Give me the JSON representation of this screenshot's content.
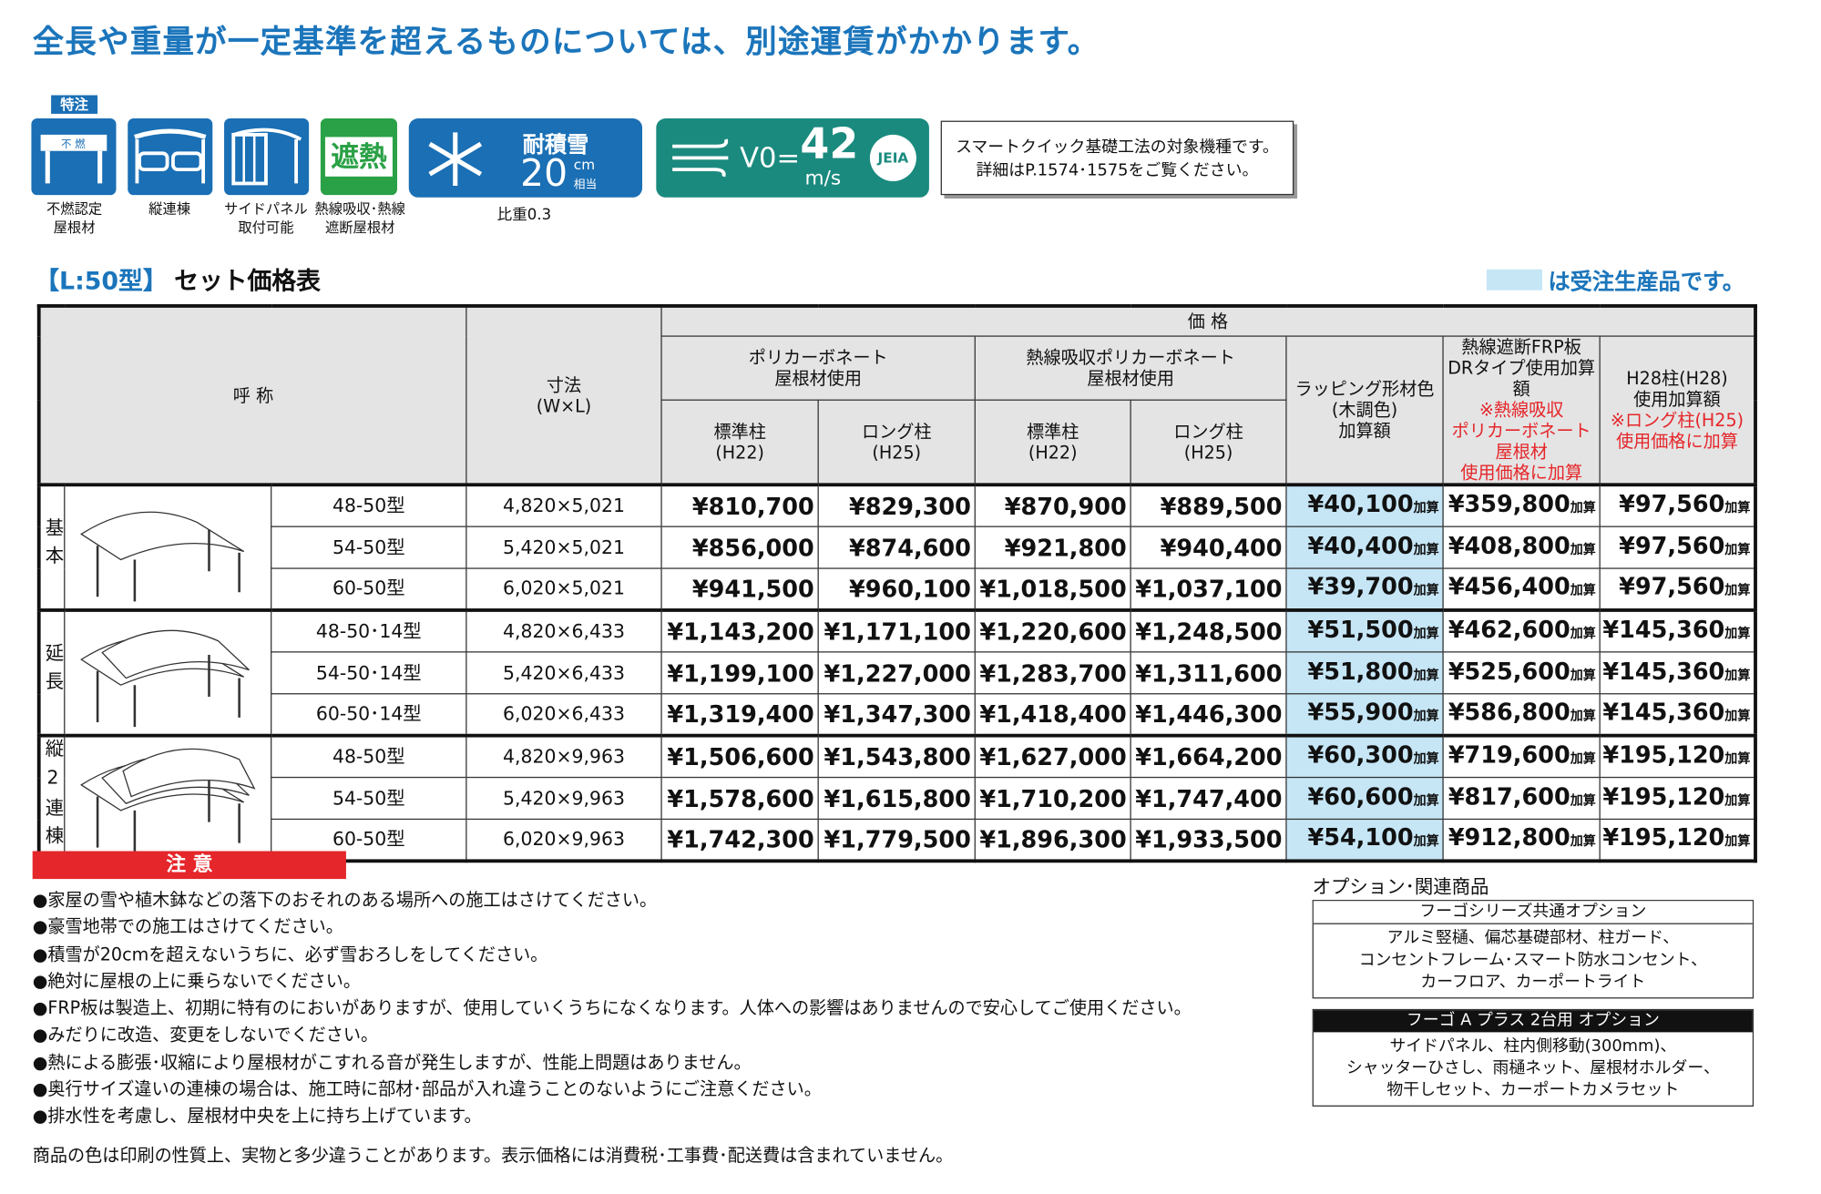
{
  "header": {
    "title": "全長や重量が一定基準を超えるものについては、別途運賃がかかります。"
  },
  "icons": {
    "special_tag": "特注",
    "items": [
      {
        "text": "不 燃",
        "label": [
          "不燃認定",
          "屋根材"
        ]
      },
      {
        "label": [
          "縦連棟"
        ]
      },
      {
        "label": [
          "サイドパネル",
          "取付可能"
        ]
      },
      {
        "text": "遮熱",
        "label": [
          "熱線吸収･熱線",
          "遮断屋根材"
        ]
      }
    ],
    "snow": {
      "title": "耐積雪",
      "value": "20",
      "unit": "cm",
      "unit_note": "相当",
      "note": "比重0.3"
    },
    "wind": {
      "prefix": "V0=",
      "value": "42",
      "unit": "m/s",
      "badge": "JEIA"
    },
    "notice": [
      "スマートクイック基礎工法の対象機種です。",
      "詳細はP.1574･1575をご覧ください。"
    ]
  },
  "section": {
    "bracket": "【L:50型】",
    "title": "セット価格表",
    "legend": "は受注生産品です。"
  },
  "table": {
    "header": {
      "name": "呼 称",
      "size": [
        "寸法",
        "(W×L)"
      ],
      "price": "価 格",
      "groups": [
        [
          "ポリカーボネート",
          "屋根材使用"
        ],
        [
          "熱線吸収ポリカーボネート",
          "屋根材使用"
        ]
      ],
      "extras": [
        {
          "lines": [
            "ラッピング形材色",
            "(木調色)",
            "加算額"
          ],
          "notes": []
        },
        {
          "lines": [
            "熱線遮断FRP板",
            "DRタイプ使用加算額"
          ],
          "notes": [
            "※熱線吸収",
            "ポリカーボネート屋根材",
            "使用価格に加算"
          ]
        },
        {
          "lines": [
            "H28柱(H28)",
            "使用加算額"
          ],
          "notes": [
            "※ロング柱(H25)",
            "使用価格に加算"
          ]
        }
      ],
      "posts": [
        [
          "標準柱",
          "(H22)"
        ],
        [
          "ロング柱",
          "(H25)"
        ],
        [
          "標準柱",
          "(H22)"
        ],
        [
          "ロング柱",
          "(H25)"
        ]
      ]
    },
    "suffix": "加算",
    "groups": [
      {
        "label": "基本",
        "rows": [
          {
            "name": "48-50型",
            "size": "4,820×5,021",
            "prices": [
              "¥810,700",
              "¥829,300",
              "¥870,900",
              "¥889,500",
              "¥40,100",
              "¥359,800",
              "¥97,560"
            ]
          },
          {
            "name": "54-50型",
            "size": "5,420×5,021",
            "prices": [
              "¥856,000",
              "¥874,600",
              "¥921,800",
              "¥940,400",
              "¥40,400",
              "¥408,800",
              "¥97,560"
            ]
          },
          {
            "name": "60-50型",
            "size": "6,020×5,021",
            "prices": [
              "¥941,500",
              "¥960,100",
              "¥1,018,500",
              "¥1,037,100",
              "¥39,700",
              "¥456,400",
              "¥97,560"
            ]
          }
        ]
      },
      {
        "label": "延長",
        "rows": [
          {
            "name": "48-50･14型",
            "size": "4,820×6,433",
            "prices": [
              "¥1,143,200",
              "¥1,171,100",
              "¥1,220,600",
              "¥1,248,500",
              "¥51,500",
              "¥462,600",
              "¥145,360"
            ]
          },
          {
            "name": "54-50･14型",
            "size": "5,420×6,433",
            "prices": [
              "¥1,199,100",
              "¥1,227,000",
              "¥1,283,700",
              "¥1,311,600",
              "¥51,800",
              "¥525,600",
              "¥145,360"
            ]
          },
          {
            "name": "60-50･14型",
            "size": "6,020×6,433",
            "prices": [
              "¥1,319,400",
              "¥1,347,300",
              "¥1,418,400",
              "¥1,446,300",
              "¥55,900",
              "¥586,800",
              "¥145,360"
            ]
          }
        ]
      },
      {
        "label": "縦2連棟",
        "rows": [
          {
            "name": "48-50型",
            "size": "4,820×9,963",
            "prices": [
              "¥1,506,600",
              "¥1,543,800",
              "¥1,627,000",
              "¥1,664,200",
              "¥60,300",
              "¥719,600",
              "¥195,120"
            ]
          },
          {
            "name": "54-50型",
            "size": "5,420×9,963",
            "prices": [
              "¥1,578,600",
              "¥1,615,800",
              "¥1,710,200",
              "¥1,747,400",
              "¥60,600",
              "¥817,600",
              "¥195,120"
            ]
          },
          {
            "name": "60-50型",
            "size": "6,020×9,963",
            "prices": [
              "¥1,742,300",
              "¥1,779,500",
              "¥1,896,300",
              "¥1,933,500",
              "¥54,100",
              "¥912,800",
              "¥195,120"
            ]
          }
        ]
      }
    ]
  },
  "caution": {
    "title": "注 意",
    "items": [
      "●家屋の雪や植木鉢などの落下のおそれのある場所への施工はさけてください。",
      "●豪雪地帯での施工はさけてください。",
      "●積雪が20cmを超えないうちに、必ず雪おろしをしてください。",
      "●絶対に屋根の上に乗らないでください。",
      "●FRP板は製造上、初期に特有のにおいがありますが、使用していくうちになくなります。人体への影響はありませんので安心してご使用ください。",
      "●みだりに改造、変更をしないでください。",
      "●熱による膨張･収縮により屋根材がこすれる音が発生しますが、性能上問題はありません。",
      "●奥行サイズ違いの連棟の場合は、施工時に部材･部品が入れ違うことのないようにご注意ください。",
      "●排水性を考慮し、屋根材中央を上に持ち上げています。"
    ]
  },
  "footer": "商品の色は印刷の性質上、実物と多少違うことがあります。表示価格には消費税･工事費･配送費は含まれていません。",
  "options": {
    "title": "オプション･関連商品",
    "boxes": [
      {
        "header": "フーゴシリーズ共通オプション",
        "lines": [
          "アルミ竪樋、偏芯基礎部材、柱ガード、",
          "コンセントフレーム･スマート防水コンセント、",
          "カーフロア、カーポートライト"
        ]
      },
      {
        "header": "フーゴ A プラス 2台用 オプション",
        "lines": [
          "サイドパネル、柱内側移動(300mm)、",
          "シャッターひさし、雨樋ネット、屋根材ホルダー、",
          "物干しセット、カーポートカメラセット"
        ]
      }
    ]
  }
}
